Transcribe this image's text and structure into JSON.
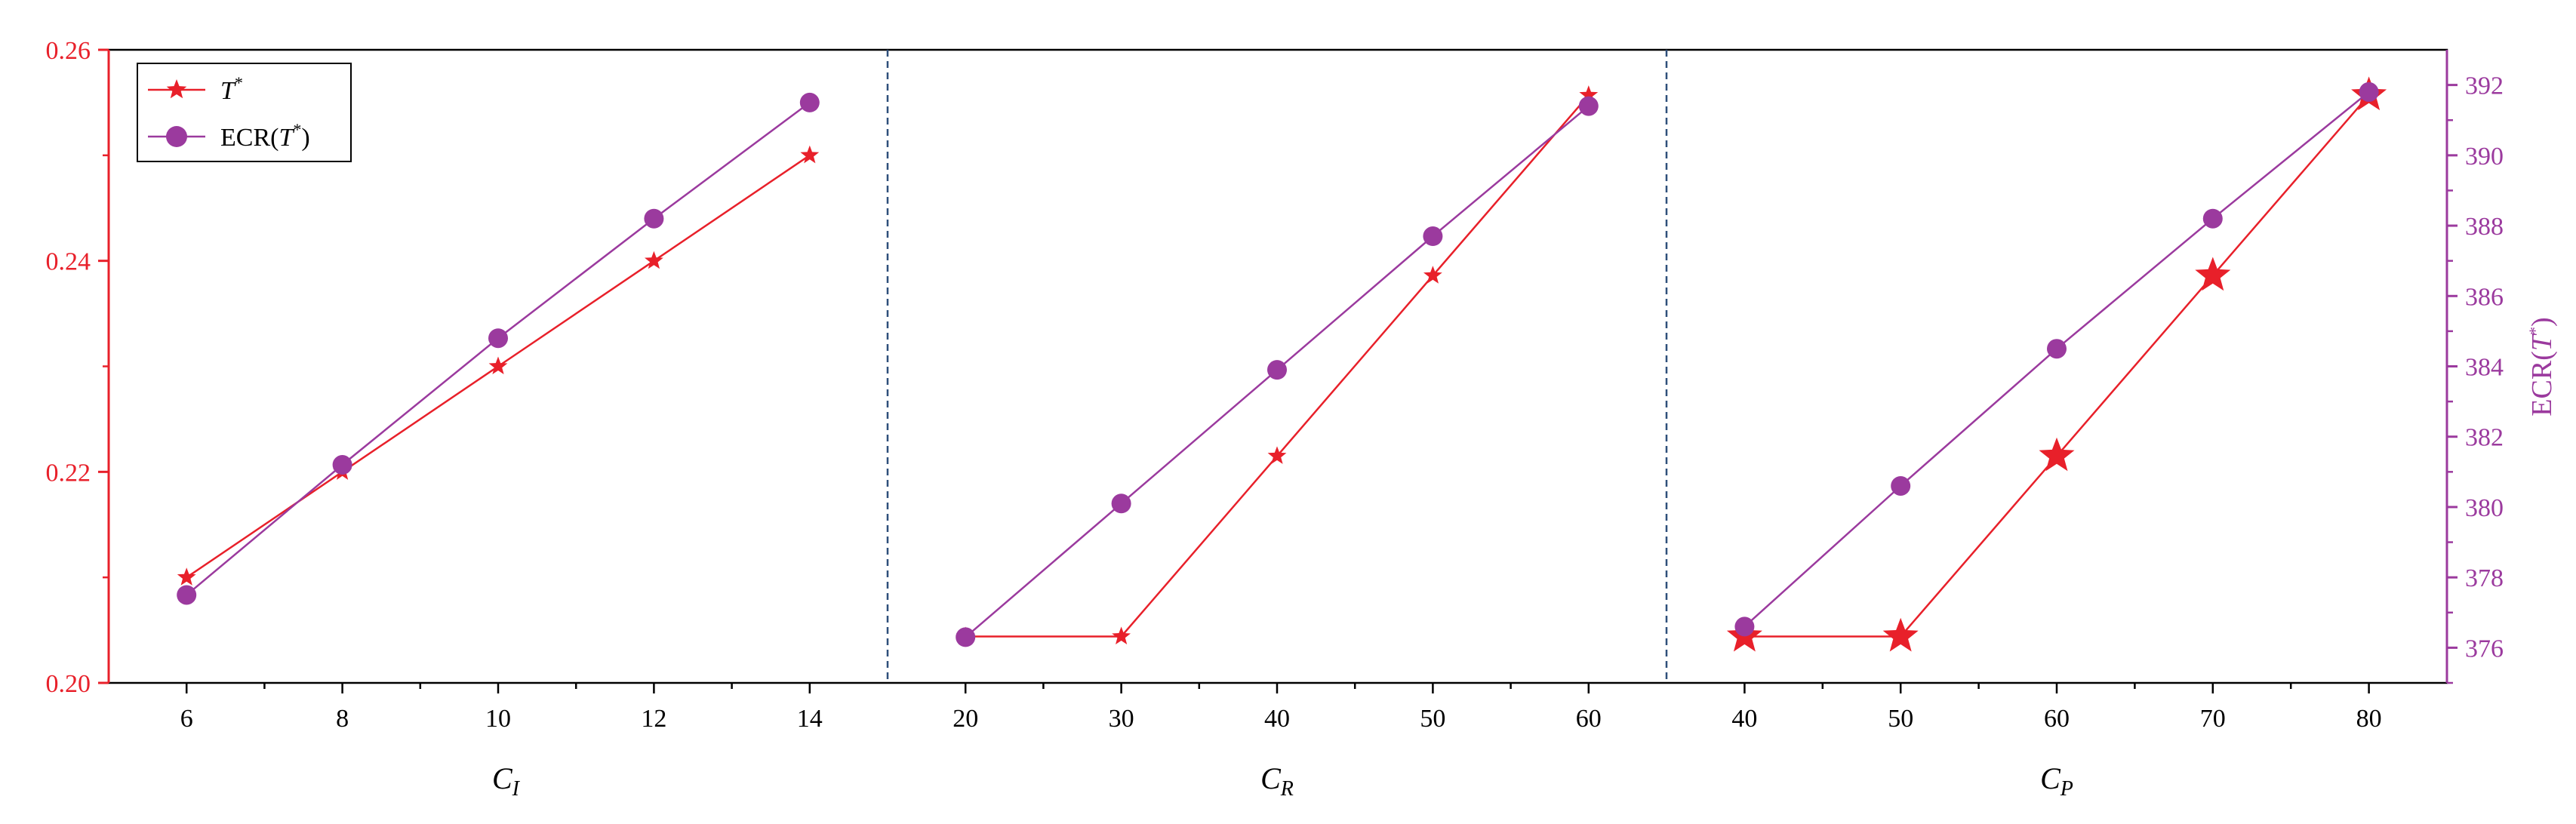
{
  "colors": {
    "t_series": "#e8202a",
    "ecr_series": "#9b3a9e",
    "frame": "#000000",
    "separator": "#2e4f7a"
  },
  "legend": {
    "placement": "top-left",
    "entries": [
      {
        "label": "T*",
        "marker": "star",
        "color": "#e8202a"
      },
      {
        "label": "ECR(T*)",
        "marker": "circle",
        "color": "#9b3a9e"
      }
    ]
  },
  "left_axis": {
    "ylim": [
      0.2,
      0.26
    ],
    "ticks": [
      "0.20",
      "0.22",
      "0.24",
      "0.26"
    ],
    "color": "#e8202a"
  },
  "right_axis": {
    "label": "ECR(T*)",
    "ylim": [
      375,
      393
    ],
    "ticks": [
      "376",
      "378",
      "380",
      "382",
      "384",
      "386",
      "388",
      "390",
      "392"
    ],
    "color": "#9b3a9e"
  },
  "chart_data": [
    {
      "type": "line",
      "xlabel": "C_I",
      "x": [
        6,
        8,
        10,
        12,
        14
      ],
      "xlim": [
        5,
        15
      ],
      "xticks": [
        "6",
        "8",
        "10",
        "12",
        "14"
      ],
      "series": [
        {
          "name": "T*",
          "axis": "left",
          "values": [
            0.21,
            0.22,
            0.23,
            0.24,
            0.25
          ]
        },
        {
          "name": "ECR(T*)",
          "axis": "right",
          "values": [
            377.5,
            381.2,
            384.8,
            388.2,
            391.5
          ]
        }
      ]
    },
    {
      "type": "line",
      "xlabel": "C_R",
      "x": [
        20,
        30,
        40,
        50,
        60
      ],
      "xlim": [
        15,
        65
      ],
      "xticks": [
        "20",
        "30",
        "40",
        "50",
        "60"
      ],
      "series": [
        {
          "name": "T*",
          "axis": "left",
          "values": [
            0.2044,
            0.2044,
            0.2215,
            0.2386,
            0.2557
          ]
        },
        {
          "name": "ECR(T*)",
          "axis": "right",
          "values": [
            376.3,
            380.1,
            383.9,
            387.7,
            391.4
          ]
        }
      ]
    },
    {
      "type": "line",
      "xlabel": "C_P",
      "x": [
        40,
        50,
        60,
        70,
        80
      ],
      "xlim": [
        35,
        85
      ],
      "xticks": [
        "40",
        "50",
        "60",
        "70",
        "80"
      ],
      "series": [
        {
          "name": "T*",
          "axis": "left",
          "values": [
            0.2044,
            0.2044,
            0.2215,
            0.2386,
            0.2557
          ]
        },
        {
          "name": "ECR(T*)",
          "axis": "right",
          "values": [
            376.6,
            380.6,
            384.5,
            388.2,
            391.8
          ]
        }
      ]
    }
  ]
}
